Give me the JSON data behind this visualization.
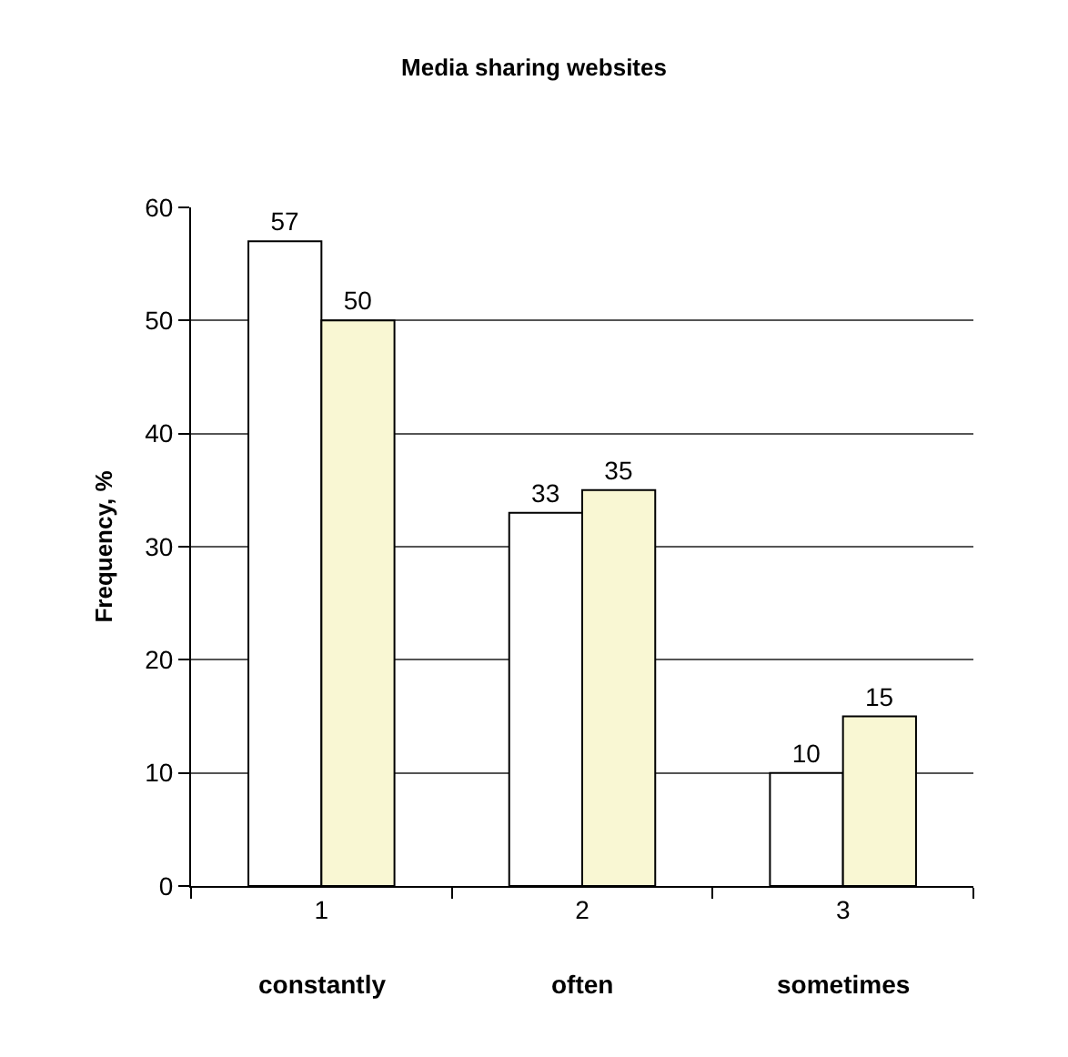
{
  "chart_data": {
    "type": "bar",
    "title": "Media sharing websites",
    "ylabel": "Frequency, %",
    "categories": [
      "1",
      "2",
      "3"
    ],
    "annotations": [
      "constantly",
      "often",
      "sometimes"
    ],
    "series": [
      {
        "color": "#ffffff",
        "values": [
          57,
          33,
          10
        ]
      },
      {
        "color": "#f9f7d3",
        "values": [
          50,
          35,
          15
        ]
      }
    ],
    "ylim": [
      0,
      60
    ],
    "yticks": [
      0,
      10,
      20,
      30,
      40,
      50,
      60
    ],
    "grid": "y",
    "data_labels": true
  }
}
